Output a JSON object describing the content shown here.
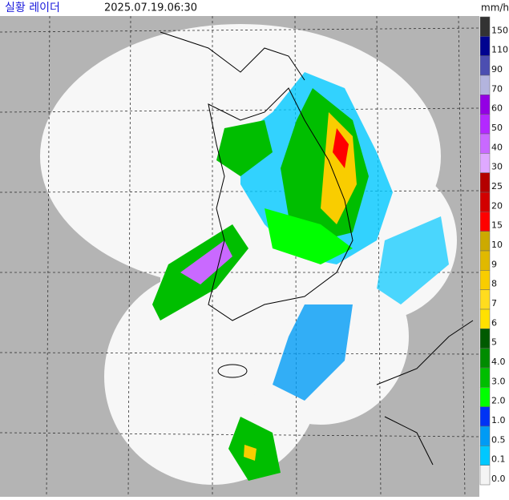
{
  "header": {
    "title": "실황 레이더",
    "time": "2025.07.19.06:30"
  },
  "legend": {
    "unit": "mm/h",
    "items": [
      {
        "label": "150",
        "color": "#333333"
      },
      {
        "label": "110",
        "color": "#000390"
      },
      {
        "label": "90",
        "color": "#4c4eb1"
      },
      {
        "label": "70",
        "color": "#b3b4de"
      },
      {
        "label": "60",
        "color": "#9300e4"
      },
      {
        "label": "50",
        "color": "#b329ff"
      },
      {
        "label": "40",
        "color": "#c969ff"
      },
      {
        "label": "30",
        "color": "#dfa9ff"
      },
      {
        "label": "25",
        "color": "#b40000"
      },
      {
        "label": "20",
        "color": "#d20000"
      },
      {
        "label": "15",
        "color": "#ff0000"
      },
      {
        "label": "10",
        "color": "#ccaa00"
      },
      {
        "label": "9",
        "color": "#e0b900"
      },
      {
        "label": "8",
        "color": "#f9cd00"
      },
      {
        "label": "7",
        "color": "#ffdc1f"
      },
      {
        "label": "6",
        "color": "#ffe100"
      },
      {
        "label": "5",
        "color": "#005a00"
      },
      {
        "label": "4.0",
        "color": "#008c00"
      },
      {
        "label": "3.0",
        "color": "#00be00"
      },
      {
        "label": "2.0",
        "color": "#00ff00"
      },
      {
        "label": "1.0",
        "color": "#0033f5"
      },
      {
        "label": "0.5",
        "color": "#009bf5"
      },
      {
        "label": "0.1",
        "color": "#00c8ff"
      },
      {
        "label": "0.0",
        "color": "#f4f4f4"
      }
    ]
  }
}
